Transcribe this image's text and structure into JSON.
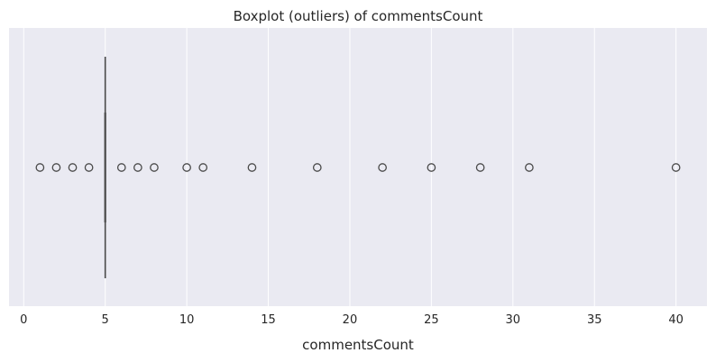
{
  "chart_data": {
    "type": "boxplot",
    "orientation": "horizontal",
    "title": "Boxplot (outliers) of commentsCount",
    "xlabel": "commentsCount",
    "ylabel": "",
    "xlim": [
      -0.9,
      41.9
    ],
    "xticks": [
      0,
      5,
      10,
      15,
      20,
      25,
      30,
      35,
      40
    ],
    "grid": true,
    "background": "#eaeaf2",
    "grid_color": "#ffffff",
    "box": {
      "q1": 5,
      "median": 5,
      "q3": 5,
      "whisker_low": 5,
      "whisker_high": 5
    },
    "outliers": [
      1,
      2,
      3,
      4,
      6,
      7,
      8,
      10,
      11,
      14,
      18,
      22,
      25,
      28,
      31,
      40
    ],
    "line_color": "#4a4a4a"
  }
}
